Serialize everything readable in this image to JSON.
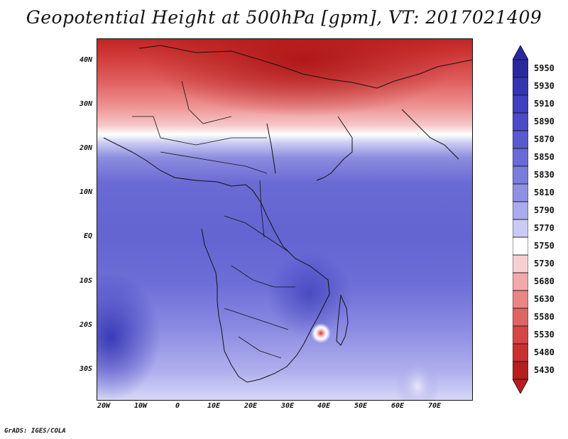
{
  "title": "Geopotential Height at 500hPa [gpm], VT: 2017021409",
  "credit": "GrADS: IGES/COLA",
  "map": {
    "y_axis_labels": [
      "40N",
      "30N",
      "20N",
      "10N",
      "EQ",
      "10S",
      "20S",
      "30S"
    ],
    "x_axis_labels": [
      "20W",
      "10W",
      "0",
      "10E",
      "20E",
      "30E",
      "40E",
      "50E",
      "60E",
      "70E"
    ],
    "projection": "lat-lon",
    "region": "Africa"
  },
  "colorbar": {
    "labels": [
      "5950",
      "5930",
      "5910",
      "5890",
      "5870",
      "5850",
      "5830",
      "5810",
      "5790",
      "5770",
      "5750",
      "5730",
      "5680",
      "5630",
      "5580",
      "5530",
      "5480",
      "5430"
    ],
    "colors": [
      "#2a2a9e",
      "#3535b0",
      "#3f3fc0",
      "#4b4bc8",
      "#5a5acf",
      "#6a6ad6",
      "#7c7cdc",
      "#9090e3",
      "#aaaaec",
      "#cacaf4",
      "#ffffff",
      "#f6d0d0",
      "#f0aaaa",
      "#ea8585",
      "#e06464",
      "#d64646",
      "#c93030",
      "#b51f1f"
    ]
  },
  "chart_data": {
    "type": "heatmap",
    "title": "Geopotential Height at 500hPa [gpm], VT: 2017021409",
    "variable": "Geopotential Height at 500hPa",
    "units": "gpm",
    "valid_time": "2017021409",
    "x_ticks": [
      "20W",
      "10W",
      "0",
      "10E",
      "20E",
      "30E",
      "40E",
      "50E",
      "60E",
      "70E"
    ],
    "y_ticks": [
      "40N",
      "30N",
      "20N",
      "10N",
      "EQ",
      "10S",
      "20S",
      "30S"
    ],
    "levels": [
      5430,
      5480,
      5530,
      5580,
      5630,
      5680,
      5730,
      5750,
      5770,
      5790,
      5810,
      5830,
      5850,
      5870,
      5890,
      5910,
      5930,
      5950
    ]
  }
}
